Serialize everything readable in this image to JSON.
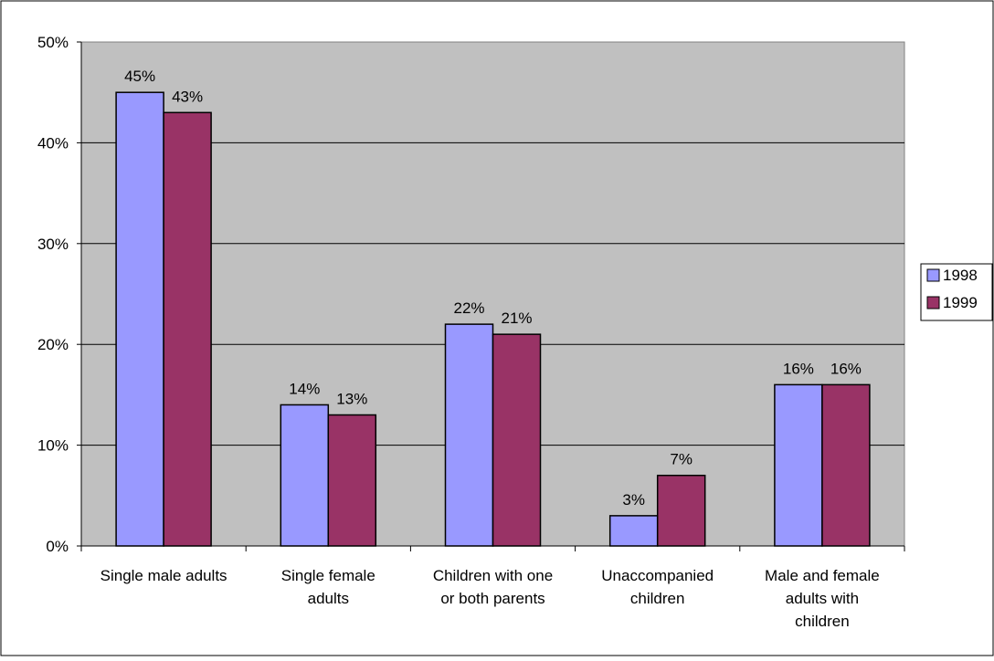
{
  "chart_data": {
    "type": "bar",
    "title": "",
    "xlabel": "",
    "ylabel": "",
    "categories": [
      [
        "Single male adults"
      ],
      [
        "Single female",
        "adults"
      ],
      [
        "Children with one",
        "or both parents"
      ],
      [
        "Unaccompanied",
        "children"
      ],
      [
        "Male and female",
        "adults with",
        "children"
      ]
    ],
    "series": [
      {
        "name": "1998",
        "color": "#9999ff",
        "values": [
          45,
          14,
          22,
          3,
          16
        ],
        "labels": [
          "45%",
          "14%",
          "22%",
          "3%",
          "16%"
        ]
      },
      {
        "name": "1999",
        "color": "#993366",
        "values": [
          43,
          13,
          21,
          7,
          16
        ],
        "labels": [
          "43%",
          "13%",
          "21%",
          "7%",
          "16%"
        ]
      }
    ],
    "ylim": [
      0,
      50
    ],
    "yticks": [
      {
        "value": 0,
        "label": "0%"
      },
      {
        "value": 10,
        "label": "10%"
      },
      {
        "value": 20,
        "label": "20%"
      },
      {
        "value": 30,
        "label": "30%"
      },
      {
        "value": 40,
        "label": "40%"
      },
      {
        "value": 50,
        "label": "50%"
      }
    ],
    "grid": true,
    "plot_background": "#c0c0c0",
    "legend_position": "right"
  }
}
